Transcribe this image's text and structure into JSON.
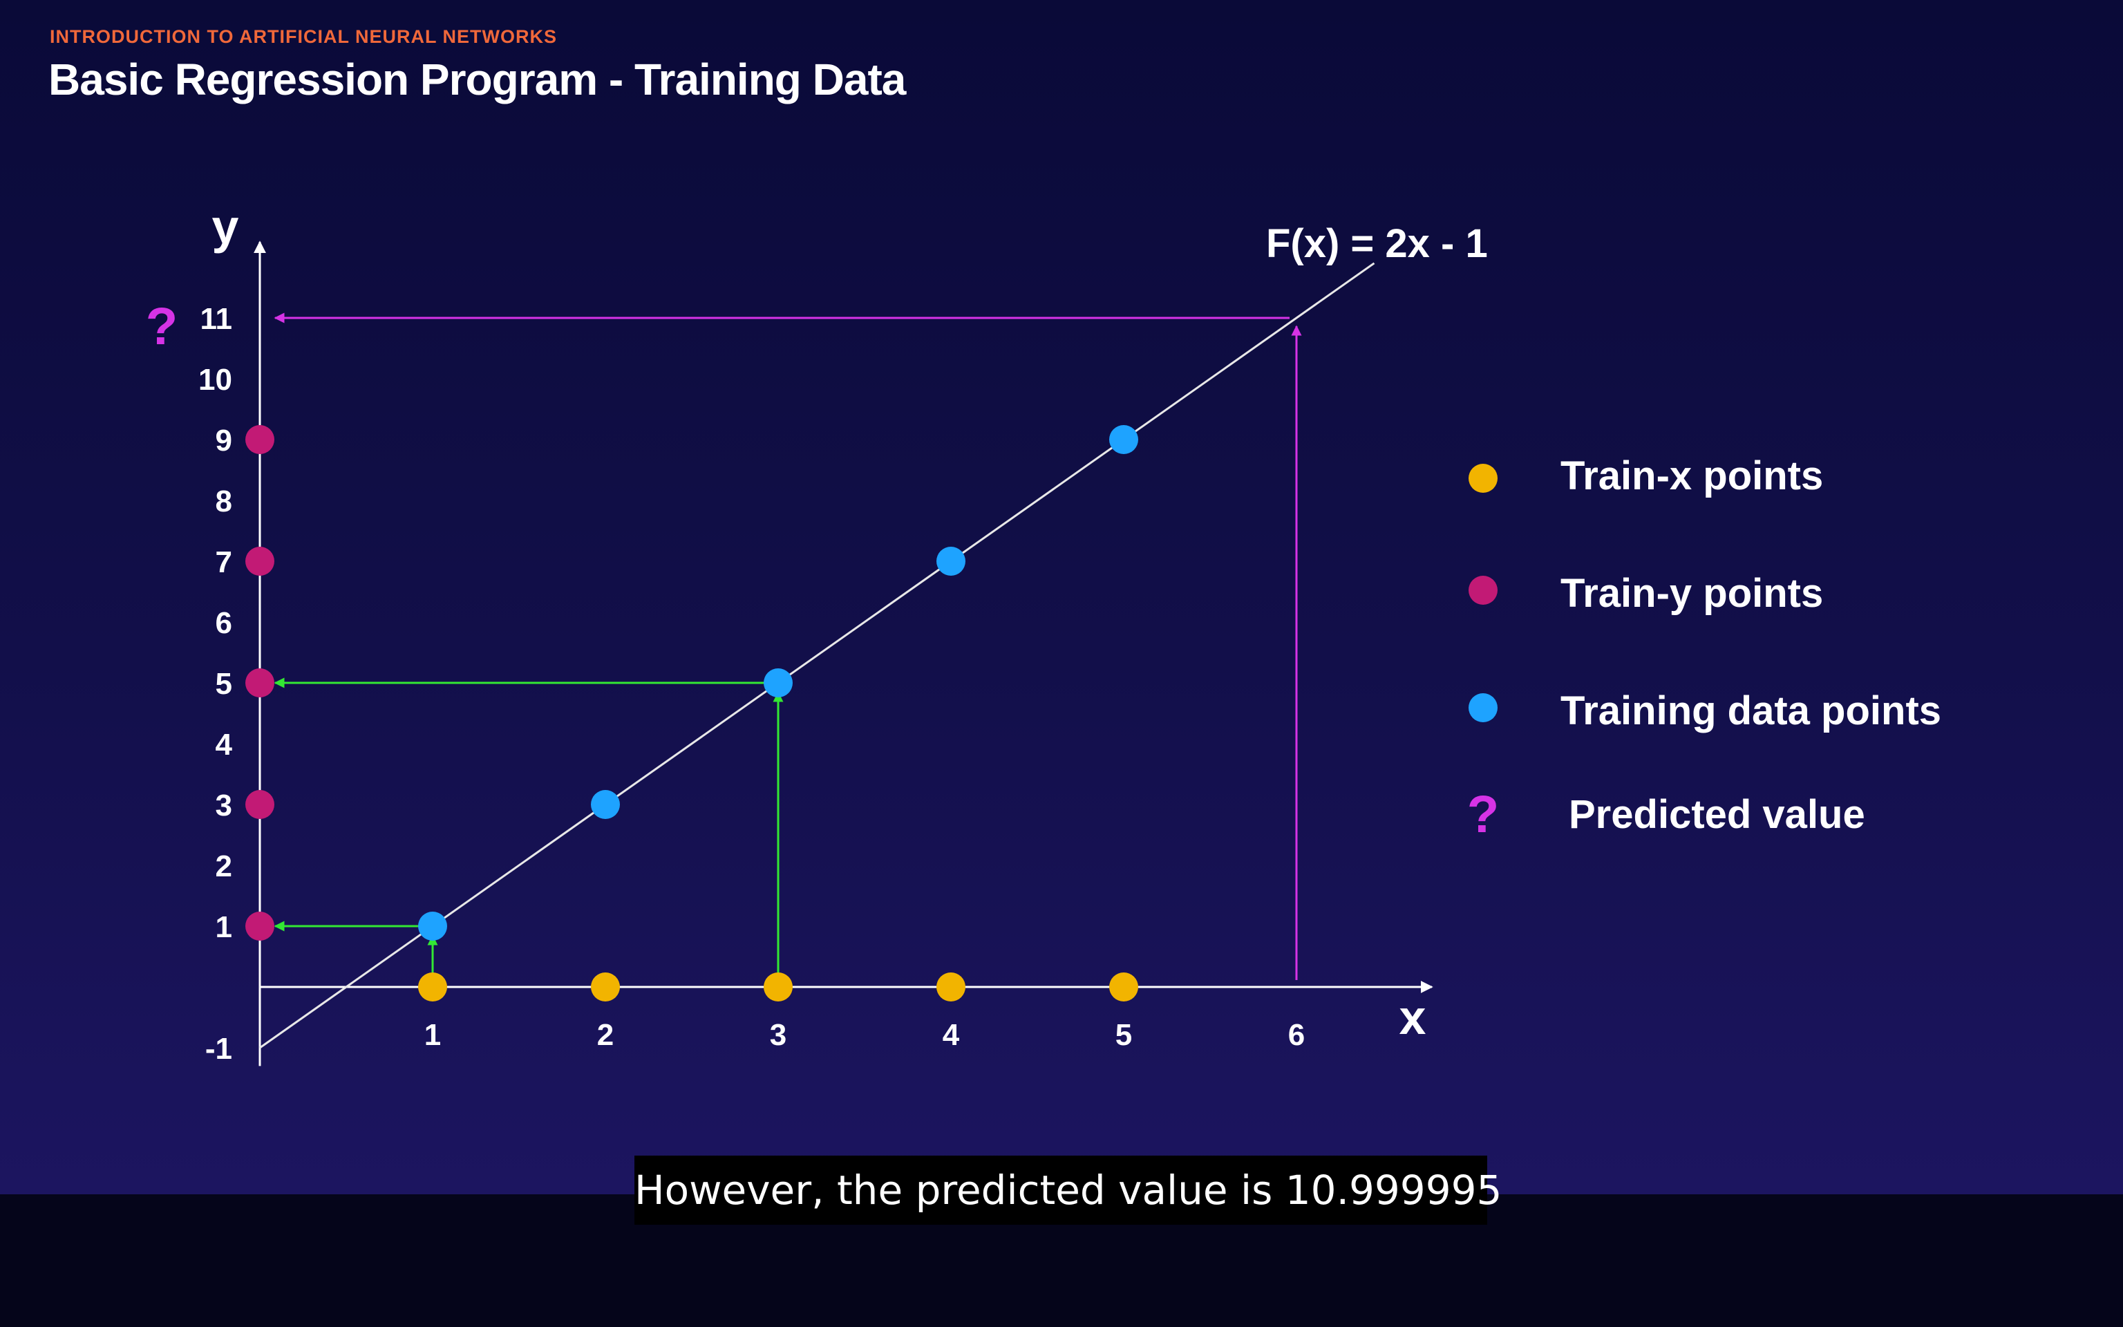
{
  "slide": {
    "overline": "INTRODUCTION TO ARTIFICIAL NEURAL NETWORKS",
    "title": "Basic Regression Program - Training Data"
  },
  "caption": "However, the predicted value is 10.999995",
  "colors": {
    "train_x": "#f2b400",
    "train_y": "#c21a75",
    "training_points": "#1ea3ff",
    "predicted": "#d633e6",
    "mapping_arrows": "#33e833",
    "line": "#e8e8e8"
  },
  "chart_data": {
    "type": "scatter",
    "function_label": "F(x) = 2x - 1",
    "xlabel": "x",
    "ylabel": "y",
    "xlim": [
      0,
      7
    ],
    "ylim": [
      -2,
      12
    ],
    "x_ticks": [
      "1",
      "2",
      "3",
      "4",
      "5",
      "6"
    ],
    "y_ticks": [
      "-1",
      "1",
      "2",
      "3",
      "4",
      "5",
      "6",
      "7",
      "8",
      "9",
      "10",
      "11"
    ],
    "line": {
      "slope": 2,
      "intercept": -1,
      "x_range": [
        0,
        6.45
      ]
    },
    "series": [
      {
        "name": "Train-x points",
        "role": "train_x",
        "color": "#f2b400",
        "x": [
          1,
          2,
          3,
          4,
          5
        ],
        "y": [
          0,
          0,
          0,
          0,
          0
        ]
      },
      {
        "name": "Train-y points",
        "role": "train_y",
        "color": "#c21a75",
        "x": [
          0,
          0,
          0,
          0,
          0
        ],
        "y": [
          1,
          3,
          5,
          7,
          9
        ]
      },
      {
        "name": "Training data points",
        "role": "training",
        "color": "#1ea3ff",
        "x": [
          1,
          2,
          3,
          4,
          5
        ],
        "y": [
          1,
          3,
          5,
          7,
          9
        ]
      }
    ],
    "predicted": {
      "name": "Predicted value",
      "symbol": "?",
      "x": 6,
      "y": 11
    },
    "mapping_arrows": [
      {
        "x": 1,
        "y": 1,
        "color": "#33e833"
      },
      {
        "x": 3,
        "y": 5,
        "color": "#33e833"
      },
      {
        "x": 6,
        "y": 11,
        "color": "#d633e6"
      }
    ],
    "legend": {
      "placement": "right",
      "items": [
        {
          "label": "Train-x points",
          "marker": "dot",
          "color": "#f2b400"
        },
        {
          "label": "Train-y points",
          "marker": "dot",
          "color": "#c21a75"
        },
        {
          "label": "Training data points",
          "marker": "dot",
          "color": "#1ea3ff"
        },
        {
          "label": "Predicted value",
          "marker": "?",
          "color": "#d633e6"
        }
      ]
    },
    "grid": false
  }
}
